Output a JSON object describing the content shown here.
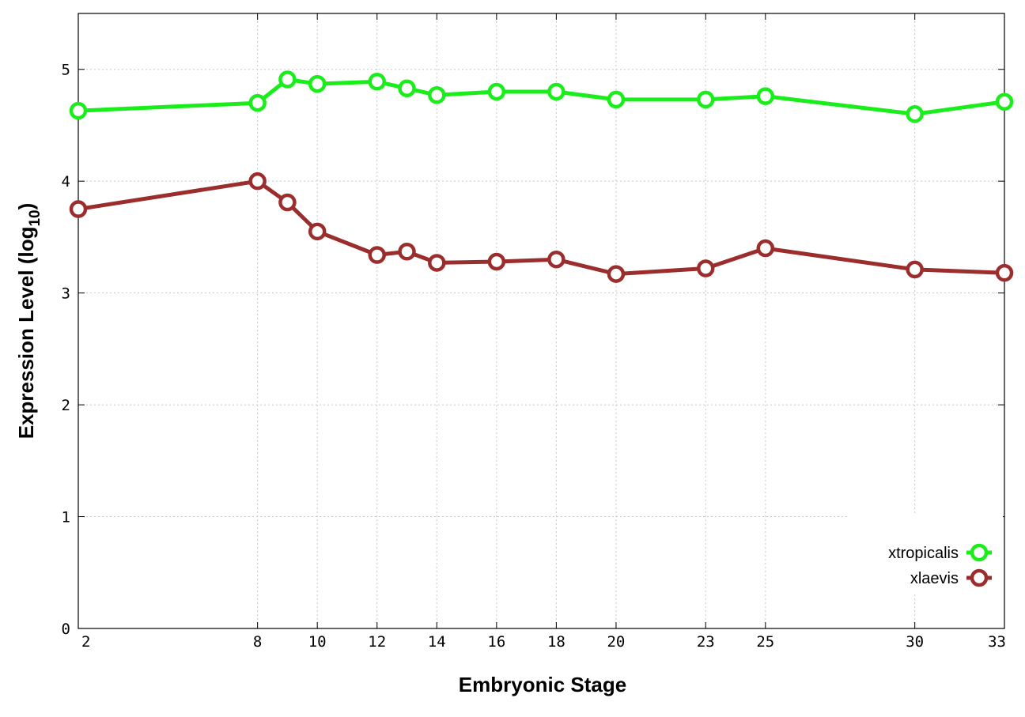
{
  "chart_data": {
    "type": "line",
    "title": "",
    "xlabel": "Embryonic Stage",
    "ylabel": {
      "main": "Expression Level (log",
      "sub": "10",
      "close": ")"
    },
    "x": [
      2,
      8,
      9,
      10,
      12,
      13,
      14,
      16,
      18,
      20,
      23,
      25,
      30,
      33
    ],
    "x_ticks": [
      2,
      8,
      10,
      12,
      14,
      16,
      18,
      20,
      23,
      25,
      30,
      33
    ],
    "xlim": [
      2,
      33
    ],
    "ylim": [
      0,
      5.5
    ],
    "y_ticks": [
      0,
      1,
      2,
      3,
      4,
      5
    ],
    "grid": true,
    "legend_position": "bottom-right",
    "series": [
      {
        "name": "xtropicalis",
        "color": "#1aee1a",
        "values": [
          4.63,
          4.7,
          4.91,
          4.87,
          4.89,
          4.83,
          4.77,
          4.8,
          4.8,
          4.73,
          4.73,
          4.76,
          4.6,
          4.71
        ]
      },
      {
        "name": "xlaevis",
        "color": "#9b2d2d",
        "values": [
          3.75,
          4.0,
          3.81,
          3.55,
          3.34,
          3.37,
          3.27,
          3.28,
          3.3,
          3.17,
          3.22,
          3.4,
          3.21,
          3.18
        ]
      }
    ]
  }
}
